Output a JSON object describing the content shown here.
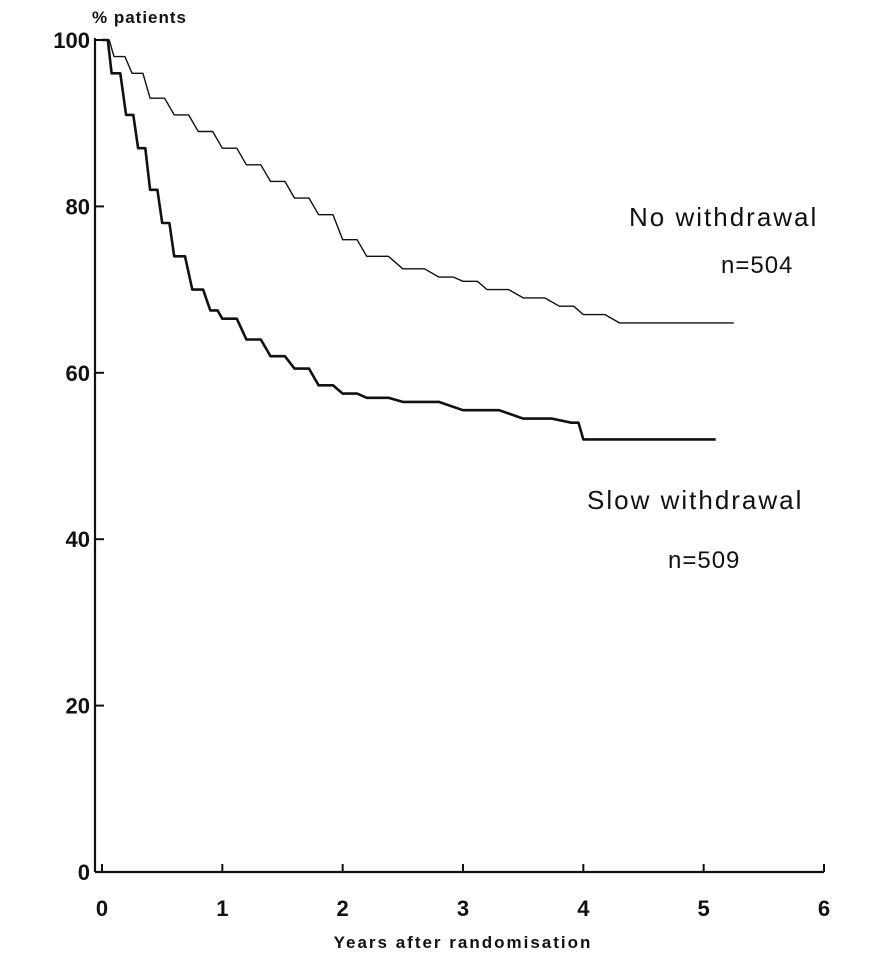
{
  "chart_data": {
    "type": "line",
    "title": "",
    "xlabel": "Years after randomisation",
    "ylabel": "% patients",
    "xlim": [
      0,
      6
    ],
    "ylim": [
      0,
      100
    ],
    "x_ticks": [
      0,
      1,
      2,
      3,
      4,
      5,
      6
    ],
    "y_ticks": [
      0,
      20,
      40,
      60,
      80,
      100
    ],
    "grid": false,
    "series": [
      {
        "name": "No withdrawal",
        "n_label": "n=504",
        "color": "#111111",
        "style": "thin",
        "points": [
          [
            0,
            100
          ],
          [
            0.1,
            98
          ],
          [
            0.25,
            96
          ],
          [
            0.4,
            93
          ],
          [
            0.6,
            91
          ],
          [
            0.8,
            89
          ],
          [
            1.0,
            87
          ],
          [
            1.2,
            85
          ],
          [
            1.4,
            83
          ],
          [
            1.6,
            81
          ],
          [
            1.8,
            79
          ],
          [
            2.0,
            76
          ],
          [
            2.2,
            74
          ],
          [
            2.5,
            72.5
          ],
          [
            2.8,
            71.5
          ],
          [
            3.0,
            71
          ],
          [
            3.2,
            70
          ],
          [
            3.5,
            69
          ],
          [
            3.8,
            68
          ],
          [
            4.0,
            67
          ],
          [
            4.3,
            66
          ],
          [
            5.0,
            66
          ],
          [
            5.25,
            66
          ]
        ]
      },
      {
        "name": "Slow withdrawal",
        "n_label": "n=509",
        "color": "#111111",
        "style": "thick",
        "points": [
          [
            0,
            100
          ],
          [
            0.08,
            96
          ],
          [
            0.2,
            91
          ],
          [
            0.3,
            87
          ],
          [
            0.4,
            82
          ],
          [
            0.5,
            78
          ],
          [
            0.6,
            74
          ],
          [
            0.75,
            70
          ],
          [
            0.9,
            67.5
          ],
          [
            1.0,
            66.5
          ],
          [
            1.2,
            64
          ],
          [
            1.4,
            62
          ],
          [
            1.6,
            60.5
          ],
          [
            1.8,
            58.5
          ],
          [
            2.0,
            57.5
          ],
          [
            2.2,
            57
          ],
          [
            2.5,
            56.5
          ],
          [
            3.0,
            55.5
          ],
          [
            3.5,
            54.5
          ],
          [
            3.9,
            54
          ],
          [
            4.0,
            52
          ],
          [
            4.5,
            52
          ],
          [
            5.1,
            52
          ]
        ]
      }
    ]
  }
}
